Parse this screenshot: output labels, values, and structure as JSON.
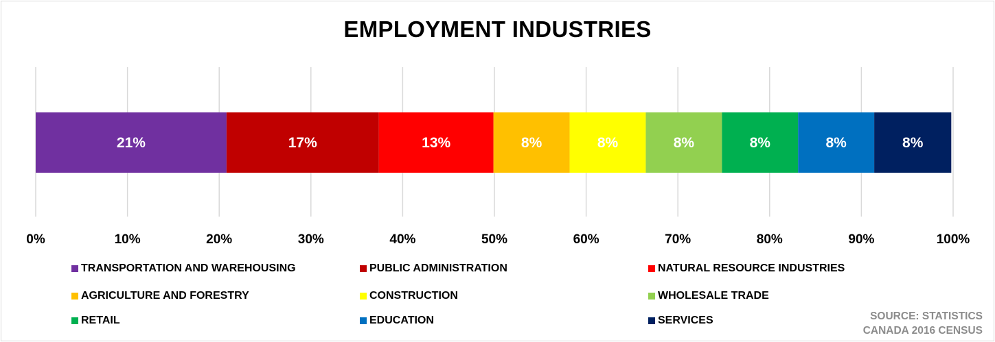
{
  "chart_data": {
    "type": "bar",
    "orientation": "horizontal",
    "stacking": "percent",
    "title": "EMPLOYMENT INDUSTRIES",
    "xlim": [
      0,
      100
    ],
    "x_ticks": [
      "0%",
      "10%",
      "20%",
      "30%",
      "40%",
      "50%",
      "60%",
      "70%",
      "80%",
      "90%",
      "100%"
    ],
    "grid": true,
    "legend_position": "bottom",
    "series": [
      {
        "name": "TRANSPORTATION AND WAREHOUSING",
        "value": 20.8,
        "label": "21%",
        "color": "#7030a0",
        "label_color": "#ffffff"
      },
      {
        "name": "PUBLIC ADMINISTRATION",
        "value": 16.6,
        "label": "17%",
        "color": "#c00000",
        "label_color": "#ffffff"
      },
      {
        "name": "NATURAL RESOURCE INDUSTRIES",
        "value": 12.5,
        "label": "13%",
        "color": "#ff0000",
        "label_color": "#ffffff"
      },
      {
        "name": "AGRICULTURE AND FORESTRY",
        "value": 8.3,
        "label": "8%",
        "color": "#ffc000",
        "label_color": "#ffffff"
      },
      {
        "name": "CONSTRUCTION",
        "value": 8.3,
        "label": "8%",
        "color": "#ffff00",
        "label_color": "#ffffff"
      },
      {
        "name": "WHOLESALE TRADE",
        "value": 8.3,
        "label": "8%",
        "color": "#92d050",
        "label_color": "#ffffff"
      },
      {
        "name": "RETAIL",
        "value": 8.3,
        "label": "8%",
        "color": "#00b050",
        "label_color": "#ffffff"
      },
      {
        "name": "EDUCATION",
        "value": 8.3,
        "label": "8%",
        "color": "#0070c0",
        "label_color": "#ffffff"
      },
      {
        "name": "SERVICES",
        "value": 8.4,
        "label": "8%",
        "color": "#002060",
        "label_color": "#ffffff"
      }
    ]
  },
  "source": {
    "line1": "SOURCE: STATISTICS",
    "line2": "CANADA 2016 CENSUS"
  }
}
